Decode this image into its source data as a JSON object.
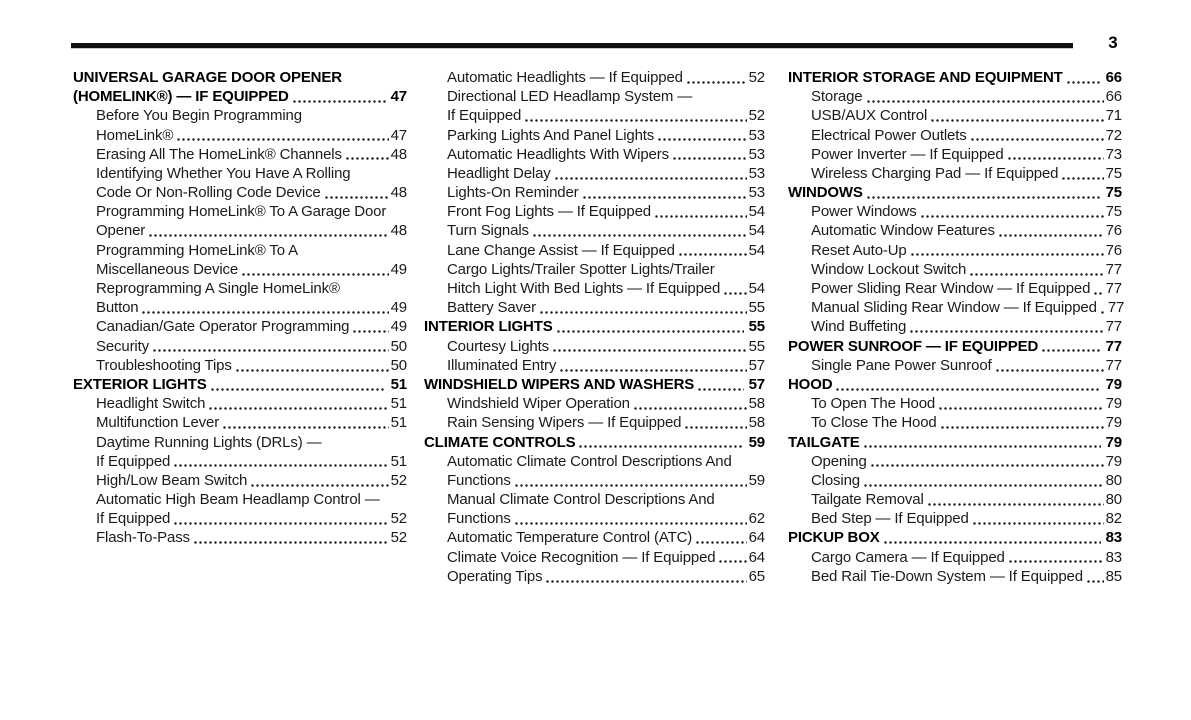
{
  "page": {
    "number": "3"
  },
  "toc": {
    "columns": [
      {
        "entries": [
          {
            "text": "UNIVERSAL GARAGE DOOR OPENER",
            "page": "",
            "bold": true,
            "indent": 0
          },
          {
            "text": "(HOMELINK®) — IF EQUIPPED",
            "page": "47",
            "bold": true,
            "indent": 0
          },
          {
            "text": "Before You Begin Programming",
            "page": "",
            "bold": false,
            "indent": 1
          },
          {
            "text": "HomeLink®",
            "page": "47",
            "bold": false,
            "indent": 1
          },
          {
            "text": "Erasing All The HomeLink® Channels",
            "page": "48",
            "bold": false,
            "indent": 1
          },
          {
            "text": "Identifying Whether You Have A Rolling",
            "page": "",
            "bold": false,
            "indent": 1
          },
          {
            "text": "Code Or Non-Rolling Code Device",
            "page": "48",
            "bold": false,
            "indent": 1
          },
          {
            "text": "Programming HomeLink® To A Garage Door",
            "page": "",
            "bold": false,
            "indent": 1
          },
          {
            "text": "Opener",
            "page": "48",
            "bold": false,
            "indent": 1
          },
          {
            "text": "Programming HomeLink® To A",
            "page": "",
            "bold": false,
            "indent": 1
          },
          {
            "text": "Miscellaneous Device",
            "page": "49",
            "bold": false,
            "indent": 1
          },
          {
            "text": "Reprogramming A Single HomeLink®",
            "page": "",
            "bold": false,
            "indent": 1
          },
          {
            "text": "Button",
            "page": "49",
            "bold": false,
            "indent": 1
          },
          {
            "text": "Canadian/Gate Operator Programming",
            "page": "49",
            "bold": false,
            "indent": 1
          },
          {
            "text": "Security",
            "page": "50",
            "bold": false,
            "indent": 1
          },
          {
            "text": "Troubleshooting Tips",
            "page": "50",
            "bold": false,
            "indent": 1
          },
          {
            "text": "EXTERIOR LIGHTS",
            "page": "51",
            "bold": true,
            "indent": 0
          },
          {
            "text": "Headlight Switch",
            "page": "51",
            "bold": false,
            "indent": 1
          },
          {
            "text": "Multifunction Lever",
            "page": "51",
            "bold": false,
            "indent": 1
          },
          {
            "text": "Daytime Running Lights (DRLs) —",
            "page": "",
            "bold": false,
            "indent": 1
          },
          {
            "text": "If Equipped",
            "page": "51",
            "bold": false,
            "indent": 1
          },
          {
            "text": "High/Low Beam Switch",
            "page": "52",
            "bold": false,
            "indent": 1
          },
          {
            "text": "Automatic High Beam Headlamp Control —",
            "page": "",
            "bold": false,
            "indent": 1
          },
          {
            "text": "If Equipped",
            "page": "52",
            "bold": false,
            "indent": 1
          },
          {
            "text": "Flash-To-Pass",
            "page": "52",
            "bold": false,
            "indent": 1
          }
        ]
      },
      {
        "entries": [
          {
            "text": "Automatic Headlights — If Equipped",
            "page": "52",
            "bold": false,
            "indent": 1
          },
          {
            "text": "Directional LED Headlamp System —",
            "page": "",
            "bold": false,
            "indent": 1
          },
          {
            "text": "If Equipped",
            "page": "52",
            "bold": false,
            "indent": 1
          },
          {
            "text": "Parking Lights And Panel Lights",
            "page": "53",
            "bold": false,
            "indent": 1
          },
          {
            "text": "Automatic Headlights With Wipers",
            "page": "53",
            "bold": false,
            "indent": 1
          },
          {
            "text": "Headlight Delay",
            "page": "53",
            "bold": false,
            "indent": 1
          },
          {
            "text": "Lights-On Reminder",
            "page": "53",
            "bold": false,
            "indent": 1
          },
          {
            "text": "Front Fog Lights — If Equipped",
            "page": "54",
            "bold": false,
            "indent": 1
          },
          {
            "text": "Turn Signals",
            "page": "54",
            "bold": false,
            "indent": 1
          },
          {
            "text": "Lane Change Assist — If Equipped",
            "page": "54",
            "bold": false,
            "indent": 1
          },
          {
            "text": "Cargo Lights/Trailer Spotter Lights/Trailer",
            "page": "",
            "bold": false,
            "indent": 1
          },
          {
            "text": "Hitch Light With Bed Lights — If Equipped",
            "page": "54",
            "bold": false,
            "indent": 1
          },
          {
            "text": "Battery Saver",
            "page": "55",
            "bold": false,
            "indent": 1
          },
          {
            "text": "INTERIOR LIGHTS",
            "page": "55",
            "bold": true,
            "indent": 0
          },
          {
            "text": "Courtesy Lights",
            "page": "55",
            "bold": false,
            "indent": 1
          },
          {
            "text": "Illuminated Entry",
            "page": "57",
            "bold": false,
            "indent": 1
          },
          {
            "text": "WINDSHIELD WIPERS AND WASHERS",
            "page": "57",
            "bold": true,
            "indent": 0
          },
          {
            "text": "Windshield Wiper Operation",
            "page": "58",
            "bold": false,
            "indent": 1
          },
          {
            "text": "Rain Sensing Wipers — If Equipped",
            "page": "58",
            "bold": false,
            "indent": 1
          },
          {
            "text": "CLIMATE CONTROLS",
            "page": "59",
            "bold": true,
            "indent": 0
          },
          {
            "text": "Automatic Climate Control Descriptions And",
            "page": "",
            "bold": false,
            "indent": 1
          },
          {
            "text": "Functions",
            "page": "59",
            "bold": false,
            "indent": 1
          },
          {
            "text": "Manual Climate Control Descriptions And",
            "page": "",
            "bold": false,
            "indent": 1
          },
          {
            "text": "Functions",
            "page": "62",
            "bold": false,
            "indent": 1
          },
          {
            "text": "Automatic Temperature Control (ATC)",
            "page": "64",
            "bold": false,
            "indent": 1
          },
          {
            "text": "Climate Voice Recognition — If Equipped",
            "page": "64",
            "bold": false,
            "indent": 1
          },
          {
            "text": "Operating Tips",
            "page": "65",
            "bold": false,
            "indent": 1
          }
        ]
      },
      {
        "entries": [
          {
            "text": "INTERIOR STORAGE AND EQUIPMENT",
            "page": "66",
            "bold": true,
            "indent": 0
          },
          {
            "text": "Storage",
            "page": "66",
            "bold": false,
            "indent": 1
          },
          {
            "text": "USB/AUX Control",
            "page": "71",
            "bold": false,
            "indent": 1
          },
          {
            "text": "Electrical Power Outlets",
            "page": "72",
            "bold": false,
            "indent": 1
          },
          {
            "text": "Power Inverter — If Equipped",
            "page": "73",
            "bold": false,
            "indent": 1
          },
          {
            "text": "Wireless Charging Pad — If Equipped",
            "page": "75",
            "bold": false,
            "indent": 1
          },
          {
            "text": "WINDOWS",
            "page": "75",
            "bold": true,
            "indent": 0
          },
          {
            "text": "Power Windows",
            "page": "75",
            "bold": false,
            "indent": 1
          },
          {
            "text": "Automatic Window Features",
            "page": "76",
            "bold": false,
            "indent": 1
          },
          {
            "text": "Reset Auto-Up",
            "page": "76",
            "bold": false,
            "indent": 1
          },
          {
            "text": "Window Lockout Switch",
            "page": "77",
            "bold": false,
            "indent": 1
          },
          {
            "text": "Power Sliding Rear Window — If Equipped",
            "page": "77",
            "bold": false,
            "indent": 1
          },
          {
            "text": "Manual Sliding Rear Window — If Equipped",
            "page": "77",
            "bold": false,
            "indent": 1
          },
          {
            "text": "Wind Buffeting",
            "page": "77",
            "bold": false,
            "indent": 1
          },
          {
            "text": "POWER SUNROOF — IF EQUIPPED",
            "page": "77",
            "bold": true,
            "indent": 0
          },
          {
            "text": "Single Pane Power Sunroof",
            "page": "77",
            "bold": false,
            "indent": 1
          },
          {
            "text": "HOOD",
            "page": "79",
            "bold": true,
            "indent": 0
          },
          {
            "text": "To Open The Hood",
            "page": "79",
            "bold": false,
            "indent": 1
          },
          {
            "text": "To Close The Hood",
            "page": "79",
            "bold": false,
            "indent": 1
          },
          {
            "text": "TAILGATE",
            "page": "79",
            "bold": true,
            "indent": 0
          },
          {
            "text": "Opening",
            "page": "79",
            "bold": false,
            "indent": 1
          },
          {
            "text": "Closing",
            "page": "80",
            "bold": false,
            "indent": 1
          },
          {
            "text": "Tailgate Removal",
            "page": "80",
            "bold": false,
            "indent": 1
          },
          {
            "text": "Bed Step — If Equipped",
            "page": "82",
            "bold": false,
            "indent": 1
          },
          {
            "text": "PICKUP BOX",
            "page": "83",
            "bold": true,
            "indent": 0
          },
          {
            "text": "Cargo Camera — If Equipped",
            "page": "83",
            "bold": false,
            "indent": 1
          },
          {
            "text": "Bed Rail Tie-Down System — If Equipped",
            "page": "85",
            "bold": false,
            "indent": 1
          }
        ]
      }
    ]
  }
}
